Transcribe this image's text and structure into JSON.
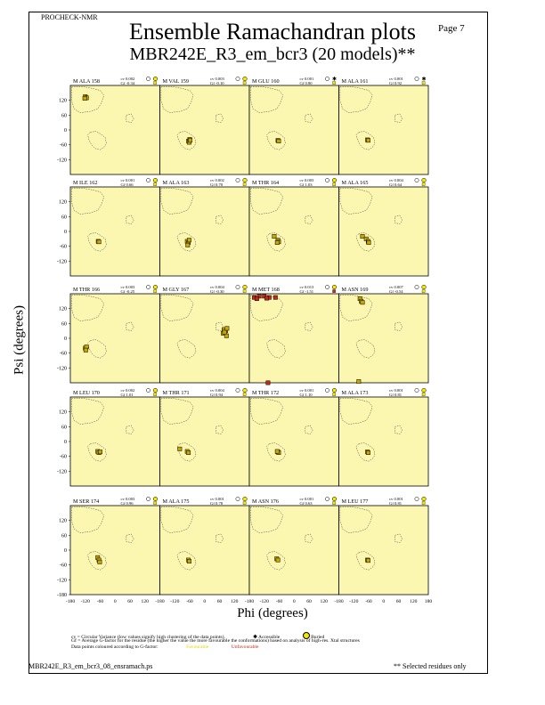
{
  "header": {
    "program": "PROCHECK-NMR",
    "page_label": "Page  7",
    "title_line1": "Ensemble Ramachandran plots",
    "title_line2": "MBR242E_R3_em_bcr3 (20 models)**"
  },
  "footer": {
    "legend_cv": "cv = Circular Variance (low values signify high clustering of the data points).",
    "legend_accessible": "Accessible",
    "legend_buried": "Buried",
    "legend_gf": "Gf = Average G-factor for the residue (the higher the value the more favourable the conformations) based on analysis of high-res. Xtal structures",
    "legend_colour": "Data points coloured according to G-factor:",
    "legend_favourable": "Favourable",
    "legend_unfavourable": "Unfavourable",
    "filename": "MBR242E_R3_em_bcr3_08_ensramach.ps",
    "selected_note": "** Selected residues only"
  },
  "colors": {
    "panel_bg": "#fbf6b0",
    "favourable": "#f4e800",
    "unfavourable": "#c4281a",
    "point_fill": "#c8a800"
  },
  "chart_data": {
    "type": "scatter",
    "xlabel": "Phi (degrees)",
    "ylabel": "Psi (degrees)",
    "xlim": [
      -180,
      180
    ],
    "ylim": [
      -180,
      180
    ],
    "x_ticks": [
      -180,
      -120,
      -60,
      0,
      60,
      120
    ],
    "x_ticks_last": [
      -180,
      -120,
      -60,
      0,
      60,
      120,
      180
    ],
    "y_ticks": [
      120,
      60,
      0,
      -60,
      -120
    ],
    "y_ticks_last": [
      120,
      60,
      0,
      -60,
      -120,
      -180
    ],
    "panels": [
      {
        "residue": "M ALA 158",
        "cv": "cv 0.002",
        "gf": "Gf -0.34",
        "acc": "buried",
        "points": [
          [
            -120,
            135
          ],
          [
            -115,
            130
          ],
          [
            -122,
            128
          ]
        ]
      },
      {
        "residue": "M VAL 159",
        "cv": "cv 0.003",
        "gf": "Gf -0.10",
        "acc": "buried",
        "points": [
          [
            -65,
            -45
          ],
          [
            -60,
            -38
          ],
          [
            -62,
            -50
          ],
          [
            -58,
            -42
          ]
        ]
      },
      {
        "residue": "M GLU 160",
        "cv": "cv 0.001",
        "gf": "Gf 0.80",
        "acc": "accessible",
        "points": [
          [
            -65,
            -42
          ],
          [
            -62,
            -45
          ]
        ]
      },
      {
        "residue": "M ALA 161",
        "cv": "cv 0.001",
        "gf": "Gf 0.92",
        "acc": "accessible",
        "points": [
          [
            -65,
            -40
          ],
          [
            -62,
            -42
          ]
        ]
      },
      {
        "residue": "M ILE 162",
        "cv": "cv 0.001",
        "gf": "Gf 0.66",
        "acc": "buried",
        "points": [
          [
            -68,
            -40
          ],
          [
            -65,
            -42
          ]
        ]
      },
      {
        "residue": "M ALA 163",
        "cv": "cv 0.002",
        "gf": "Gf 0.70",
        "acc": "buried",
        "points": [
          [
            -70,
            -40
          ],
          [
            -65,
            -45
          ],
          [
            -68,
            -55
          ],
          [
            -62,
            -35
          ]
        ]
      },
      {
        "residue": "M THR 164",
        "cv": "cv 0.003",
        "gf": "Gf 1.03",
        "acc": "buried",
        "points": [
          [
            -80,
            -20
          ],
          [
            -65,
            -35
          ],
          [
            -62,
            -42
          ],
          [
            -68,
            -45
          ]
        ]
      },
      {
        "residue": "M ALA 165",
        "cv": "cv 0.004",
        "gf": "Gf 0.64",
        "acc": "buried",
        "points": [
          [
            -85,
            -20
          ],
          [
            -70,
            -30
          ],
          [
            -62,
            -40
          ],
          [
            -60,
            -45
          ]
        ]
      },
      {
        "residue": "M THR 166",
        "cv": "cv 0.003",
        "gf": "Gf -0.25",
        "acc": "buried",
        "points": [
          [
            -120,
            -40
          ],
          [
            -115,
            -35
          ],
          [
            -118,
            -48
          ]
        ]
      },
      {
        "residue": "M GLY 167",
        "cv": "cv 0.004",
        "gf": "Gf -0.30",
        "acc": "buried",
        "points": [
          [
            75,
            20
          ],
          [
            85,
            30
          ],
          [
            78,
            35
          ],
          [
            88,
            10
          ],
          [
            80,
            25
          ],
          [
            90,
            40
          ]
        ]
      },
      {
        "residue": "M MET 168",
        "cv": "cv 0.013",
        "gf": "Gf -1.51",
        "acc": "buried",
        "points": [
          [
            -160,
            165
          ],
          [
            -140,
            170
          ],
          [
            -120,
            170
          ],
          [
            -100,
            165
          ],
          [
            -75,
            165
          ],
          [
            -150,
            160
          ],
          [
            -110,
            162
          ],
          [
            -105,
            -180
          ]
        ]
      },
      {
        "residue": "M ASN 169",
        "cv": "cv 0.007",
        "gf": "Gf -0.54",
        "acc": "buried",
        "points": [
          [
            -95,
            160
          ],
          [
            -90,
            150
          ],
          [
            -85,
            145
          ],
          [
            -100,
            -175
          ]
        ]
      },
      {
        "residue": "M LEU 170",
        "cv": "cv 0.002",
        "gf": "Gf 1.01",
        "acc": "buried",
        "points": [
          [
            -70,
            -40
          ],
          [
            -65,
            -45
          ],
          [
            -60,
            -42
          ]
        ]
      },
      {
        "residue": "M THR 171",
        "cv": "cv 0.004",
        "gf": "Gf 0.94",
        "acc": "buried",
        "points": [
          [
            -100,
            -30
          ],
          [
            -70,
            -40
          ],
          [
            -65,
            -45
          ]
        ]
      },
      {
        "residue": "M THR 172",
        "cv": "cv 0.001",
        "gf": "Gf 1.10",
        "acc": "buried",
        "points": [
          [
            -65,
            -42
          ],
          [
            -62,
            -45
          ],
          [
            -68,
            -40
          ]
        ]
      },
      {
        "residue": "M ALA 173",
        "cv": "cv 0.001",
        "gf": "Gf 0.81",
        "acc": "buried",
        "points": [
          [
            -65,
            -42
          ],
          [
            -62,
            -45
          ]
        ]
      },
      {
        "residue": "M SER 174",
        "cv": "cv 0.003",
        "gf": "Gf 0.96",
        "acc": "buried",
        "points": [
          [
            -70,
            -30
          ],
          [
            -65,
            -40
          ],
          [
            -62,
            -48
          ]
        ]
      },
      {
        "residue": "M ALA 175",
        "cv": "cv 0.001",
        "gf": "Gf 0.78",
        "acc": "buried",
        "points": [
          [
            -65,
            -40
          ],
          [
            -62,
            -45
          ]
        ]
      },
      {
        "residue": "M ASN 176",
        "cv": "cv 0.001",
        "gf": "Gf 0.63",
        "acc": "buried",
        "points": [
          [
            -70,
            -35
          ],
          [
            -65,
            -40
          ]
        ]
      },
      {
        "residue": "M LEU 177",
        "cv": "cv 0.001",
        "gf": "Gf 0.81",
        "acc": "buried",
        "points": [
          [
            -65,
            -40
          ],
          [
            -62,
            -42
          ]
        ]
      }
    ]
  }
}
